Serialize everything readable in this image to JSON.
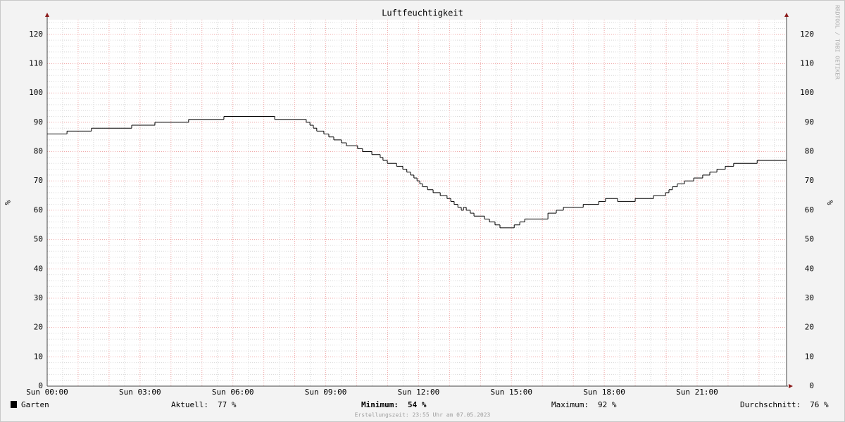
{
  "chart_data": {
    "type": "step",
    "title": "Luftfeuchtigkeit",
    "ylabel": "%",
    "watermark": "RRDTOOL / TOBI OETIKER",
    "xlim": [
      0,
      23.89
    ],
    "xticks": [
      {
        "value": 0,
        "label": "Sun 00:00"
      },
      {
        "value": 3,
        "label": "Sun 03:00"
      },
      {
        "value": 6,
        "label": "Sun 06:00"
      },
      {
        "value": 9,
        "label": "Sun 09:00"
      },
      {
        "value": 12,
        "label": "Sun 12:00"
      },
      {
        "value": 15,
        "label": "Sun 15:00"
      },
      {
        "value": 18,
        "label": "Sun 18:00"
      },
      {
        "value": 21,
        "label": "Sun 21:00"
      }
    ],
    "ylim": [
      0,
      125
    ],
    "yticks": [
      0,
      10,
      20,
      30,
      40,
      50,
      60,
      70,
      80,
      90,
      100,
      110,
      120
    ],
    "grid": true,
    "series": [
      {
        "name": "Garten",
        "color": "#000000",
        "x": [
          0,
          0.64,
          1.43,
          2.73,
          3.48,
          4.57,
          5.71,
          7.35,
          8.37,
          8.49,
          8.6,
          8.71,
          8.94,
          9.1,
          9.26,
          9.51,
          9.67,
          10.03,
          10.19,
          10.49,
          10.76,
          10.85,
          10.99,
          11.29,
          11.49,
          11.62,
          11.74,
          11.85,
          11.95,
          12.04,
          12.13,
          12.29,
          12.47,
          12.7,
          12.92,
          13.04,
          13.15,
          13.27,
          13.38,
          13.45,
          13.54,
          13.67,
          13.79,
          14.13,
          14.29,
          14.47,
          14.63,
          15.09,
          15.27,
          15.43,
          16.18,
          16.45,
          16.68,
          17.32,
          17.82,
          18.04,
          18.43,
          19.0,
          19.59,
          19.98,
          20.09,
          20.2,
          20.36,
          20.59,
          20.89,
          21.18,
          21.41,
          21.64,
          21.91,
          22.18,
          22.94
        ],
        "values": [
          86,
          87,
          88,
          89,
          90,
          91,
          92,
          91,
          90,
          89,
          88,
          87,
          86,
          85,
          84,
          83,
          82,
          81,
          80,
          79,
          78,
          77,
          76,
          75,
          74,
          73,
          72,
          71,
          70,
          69,
          68,
          67,
          66,
          65,
          64,
          63,
          62,
          61,
          60,
          61,
          60,
          59,
          58,
          57,
          56,
          55,
          54,
          55,
          56,
          57,
          59,
          60,
          61,
          62,
          63,
          64,
          63,
          64,
          65,
          66,
          67,
          68,
          69,
          70,
          71,
          72,
          73,
          74,
          75,
          76,
          77
        ]
      }
    ],
    "stats": [
      {
        "label": "Aktuell:",
        "value": "77 %"
      },
      {
        "label": "Minimum:",
        "value": "54 %"
      },
      {
        "label": "Maximum:",
        "value": "92 %"
      },
      {
        "label": "Durchschnitt:",
        "value": "76 %"
      }
    ],
    "footer": "Erstellungszeit: 23:55 Uhr am 07.05.2023"
  }
}
